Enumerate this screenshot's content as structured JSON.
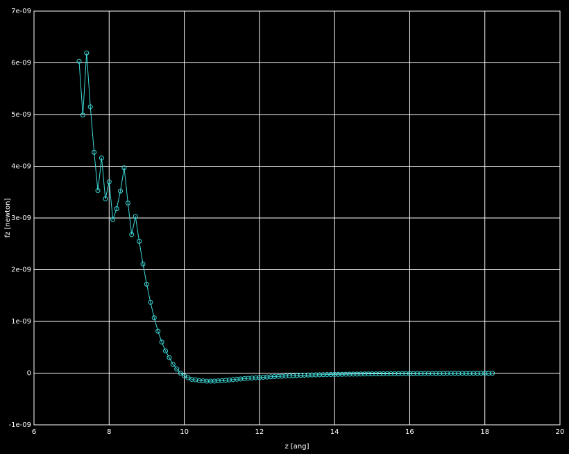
{
  "chart_data": {
    "type": "line",
    "xlabel": "z [ang]",
    "ylabel": "fz [newton]",
    "color": "#3fdcdc",
    "grid": true,
    "markers": true,
    "xlim": [
      6,
      20
    ],
    "xticks": [
      6,
      8,
      10,
      12,
      14,
      16,
      18,
      20
    ],
    "ylim": [
      -1e-09,
      7e-09
    ],
    "yticks": [
      {
        "value": -1e-09,
        "label": "-1e-09"
      },
      0,
      {
        "value": 1e-09,
        "label": "1e-09"
      },
      {
        "value": 2e-09,
        "label": "2e-09"
      },
      {
        "value": 3e-09,
        "label": "3e-09"
      },
      {
        "value": 4e-09,
        "label": "4e-09"
      },
      {
        "value": 5e-09,
        "label": "5e-09"
      },
      {
        "value": 6e-09,
        "label": "6e-09"
      },
      {
        "value": 7e-09,
        "label": "7e-09"
      }
    ],
    "x": [
      7.2,
      7.3,
      7.4,
      7.5,
      7.6,
      7.7,
      7.8,
      7.9,
      8.0,
      8.1,
      8.2,
      8.3,
      8.4,
      8.5,
      8.6,
      8.7,
      8.8,
      8.9,
      9.0,
      9.1,
      9.2,
      9.3,
      9.4,
      9.5,
      9.6,
      9.7,
      9.8,
      9.9,
      10.0,
      10.1,
      10.2,
      10.3,
      10.4,
      10.5,
      10.6,
      10.7,
      10.8,
      10.9,
      11.0,
      11.1,
      11.2,
      11.3,
      11.4,
      11.5,
      11.6,
      11.7,
      11.8,
      11.9,
      12.0,
      12.1,
      12.2,
      12.3,
      12.4,
      12.5,
      12.6,
      12.7,
      12.8,
      12.9,
      13.0,
      13.1,
      13.2,
      13.3,
      13.4,
      13.5,
      13.6,
      13.7,
      13.8,
      13.9,
      14.0,
      14.1,
      14.2,
      14.3,
      14.4,
      14.5,
      14.6,
      14.7,
      14.8,
      14.9,
      15.0,
      15.1,
      15.2,
      15.3,
      15.4,
      15.5,
      15.6,
      15.7,
      15.8,
      15.9,
      16.0,
      16.1,
      16.2,
      16.3,
      16.4,
      16.5,
      16.6,
      16.7,
      16.8,
      16.9,
      17.0,
      17.1,
      17.2,
      17.3,
      17.4,
      17.5,
      17.6,
      17.7,
      17.8,
      17.9,
      18.0,
      18.1,
      18.2
    ],
    "values": [
      6.03e-09,
      4.99e-09,
      6.19e-09,
      5.15e-09,
      4.27e-09,
      3.53e-09,
      4.16e-09,
      3.37e-09,
      3.7e-09,
      2.97e-09,
      3.18e-09,
      3.52e-09,
      3.97e-09,
      3.29e-09,
      2.68e-09,
      3.03e-09,
      2.55e-09,
      2.11e-09,
      1.72e-09,
      1.37e-09,
      1.07e-09,
      8.1e-10,
      6e-10,
      4.3e-10,
      3e-10,
      1.7e-10,
      8e-11,
      0,
      -5e-11,
      -9e-11,
      -1.2e-10,
      -1.3e-10,
      -1.45e-10,
      -1.5e-10,
      -1.55e-10,
      -1.55e-10,
      -1.55e-10,
      -1.5e-10,
      -1.45e-10,
      -1.38e-10,
      -1.32e-10,
      -1.25e-10,
      -1.18e-10,
      -1.12e-10,
      -1.06e-10,
      -1e-10,
      -9.5e-11,
      -9e-11,
      -8.5e-11,
      -8e-11,
      -7.6e-11,
      -7.1e-11,
      -6.7e-11,
      -6.3e-11,
      -6e-11,
      -5.6e-11,
      -5.3e-11,
      -5e-11,
      -4.7e-11,
      -4.2e-11,
      -4e-11,
      -3.7e-11,
      -3.5e-11,
      -3.3e-11,
      -3.2e-11,
      -3e-11,
      -2.8e-11,
      -2.7e-11,
      -2.5e-11,
      -2.4e-11,
      -2.3e-11,
      -2.1e-11,
      -2e-11,
      -1.9e-11,
      -1.8e-11,
      -1.7e-11,
      -1.6e-11,
      -1.5e-11,
      -1.4e-11,
      -1.4e-11,
      -1.3e-11,
      -1.2e-11,
      -1.1e-11,
      -1.1e-11,
      -1e-11,
      -1e-11,
      -9e-12,
      -9e-12,
      -8e-12,
      -8e-12,
      -7e-12,
      -7e-12,
      -6e-12,
      -6e-12,
      -6e-12,
      -5e-12,
      -5e-12,
      -5e-12,
      -4e-12,
      -4e-12,
      -4e-12,
      -4e-12,
      -3e-12,
      -3e-12,
      -3e-12,
      -3e-12,
      -3e-12,
      -2e-12,
      -2e-12,
      -2e-12,
      -2e-12
    ]
  }
}
